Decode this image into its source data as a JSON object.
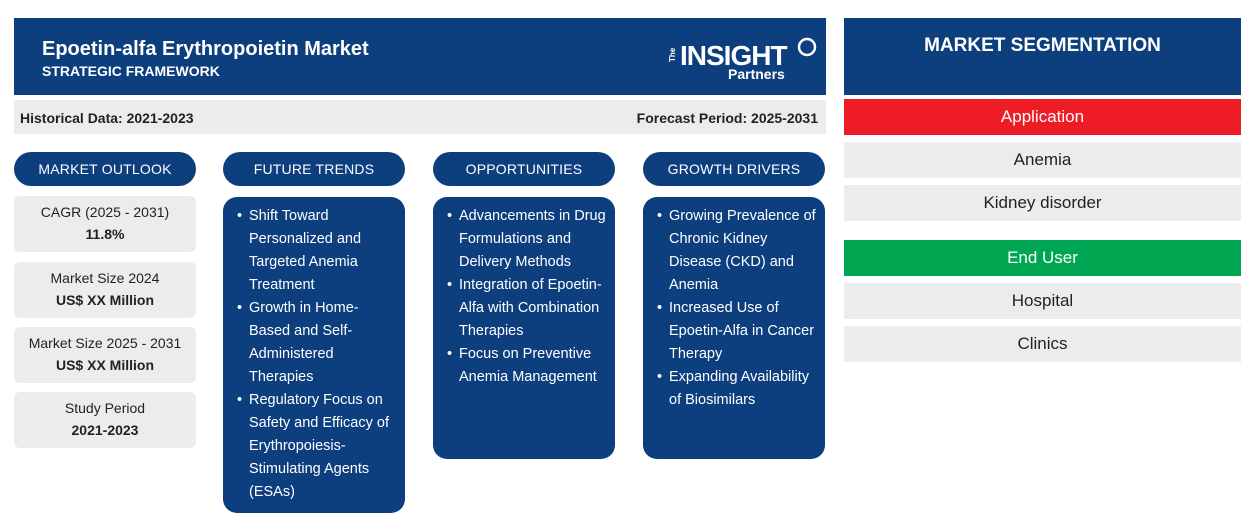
{
  "header": {
    "title": "Epoetin-alfa Erythropoietin Market",
    "subtitle": "STRATEGIC FRAMEWORK",
    "logo": {
      "the": "The",
      "insight": "INSIGHT",
      "partners": "Partners"
    }
  },
  "period": {
    "historical": "Historical Data: 2021-2023",
    "forecast": "Forecast Period: 2025-2031"
  },
  "columns": {
    "outlook": "MARKET OUTLOOK",
    "trends": "FUTURE TRENDS",
    "opportunities": "OPPORTUNITIES",
    "drivers": "GROWTH DRIVERS"
  },
  "outlook": [
    {
      "label": "CAGR (2025 - 2031)",
      "value": "11.8%"
    },
    {
      "label": "Market Size 2024",
      "value": "US$ XX Million"
    },
    {
      "label": "Market Size 2025 - 2031",
      "value": "US$ XX Million"
    },
    {
      "label": "Study Period",
      "value": "2021-2023"
    }
  ],
  "trends": [
    "Shift Toward Personalized and Targeted Anemia Treatment",
    "Growth in Home-Based and Self-Administered Therapies",
    "Regulatory Focus on Safety and Efficacy of Erythropoiesis-Stimulating Agents (ESAs)"
  ],
  "opportunities": [
    "Advancements in Drug Formulations and Delivery Methods",
    "Integration of Epoetin-Alfa with Combination Therapies",
    "Focus on Preventive Anemia Management"
  ],
  "drivers": [
    "Growing Prevalence of Chronic Kidney Disease (CKD) and Anemia",
    "Increased Use of Epoetin-Alfa in Cancer Therapy",
    "Expanding Availability of Biosimilars"
  ],
  "segmentation": {
    "title": "MARKET SEGMENTATION",
    "application": {
      "label": "Application",
      "color": "#ee1c25",
      "items": [
        "Anemia",
        "Kidney disorder"
      ]
    },
    "end_user": {
      "label": "End User",
      "color": "#00a651",
      "items": [
        "Hospital",
        "Clinics"
      ]
    }
  },
  "colors": {
    "navy": "#0d3f7f",
    "panel": "#ececec"
  }
}
